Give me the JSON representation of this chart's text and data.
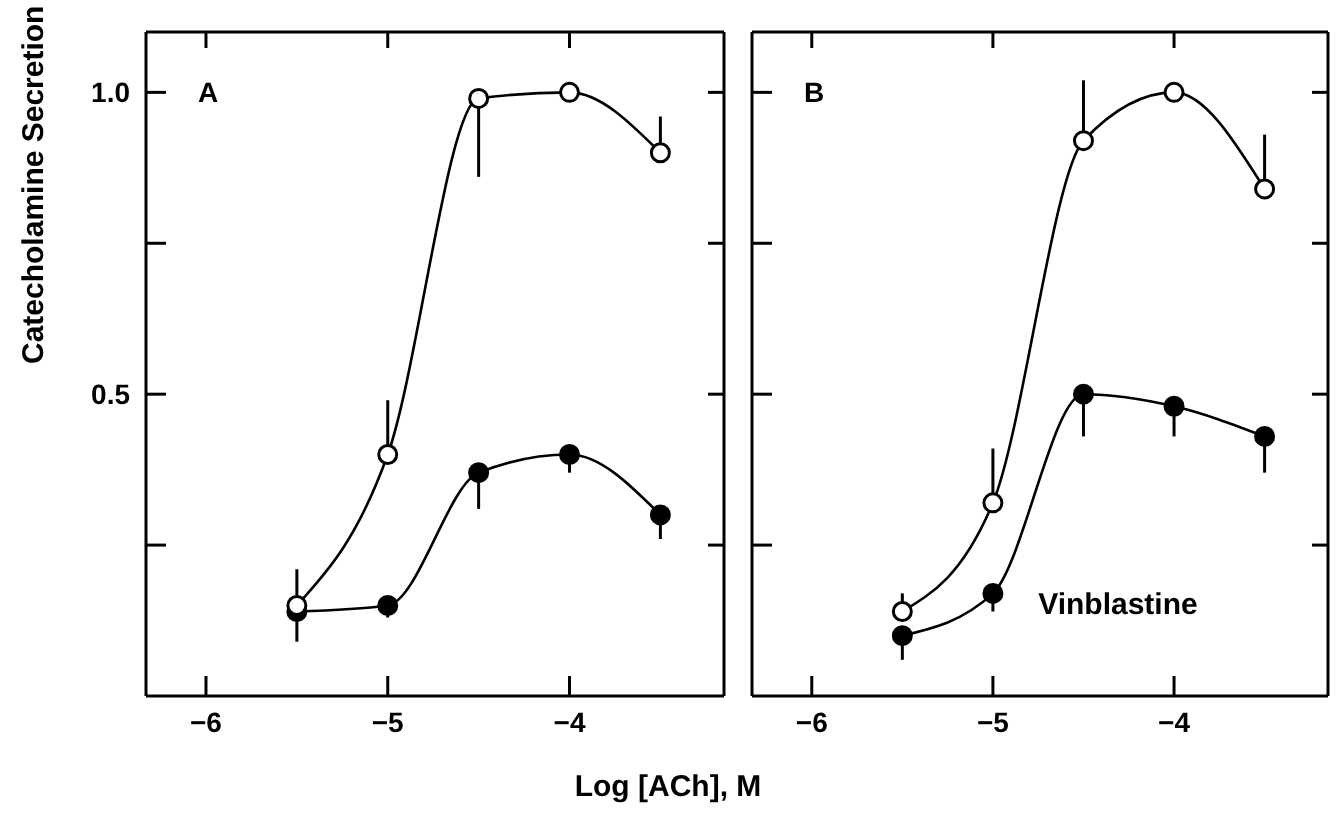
{
  "chart_data": [
    {
      "type": "line",
      "ylabel": "Catecholamine Secretion",
      "xlabel": "Log [ACh], M",
      "annotations": [
        "A"
      ],
      "x": [
        -5.5,
        -5,
        -4.5,
        -4,
        -3.5
      ],
      "xlim": [
        -6.33,
        -3.15
      ],
      "xticks": [
        -6,
        -5,
        -4
      ],
      "ylim": [
        0,
        1.1
      ],
      "yticks": [
        {
          "value": 0.25,
          "label": null
        },
        0.5,
        {
          "value": 0.75,
          "label": null
        },
        {
          "value": 1.0,
          "label": "1.0"
        }
      ],
      "marker": "circle",
      "series": [
        {
          "color": "#000000",
          "values": [
            0.15,
            0.4,
            0.99,
            1.0,
            0.9
          ],
          "errors": [
            [
              0.15,
              0.21
            ],
            [
              0.4,
              0.49
            ],
            [
              0.86,
              0.99
            ],
            null,
            [
              0.9,
              0.96
            ]
          ]
        },
        {
          "color": "#000000",
          "values": [
            0.14,
            0.15,
            0.37,
            0.4,
            0.3
          ],
          "errors": [
            [
              0.09,
              0.14
            ],
            [
              0.13,
              0.15
            ],
            [
              0.31,
              0.37
            ],
            [
              0.37,
              0.4
            ],
            [
              0.26,
              0.3
            ]
          ]
        }
      ]
    },
    {
      "type": "line",
      "annotations": [
        "B",
        "Vinblastine"
      ],
      "x": [
        -5.5,
        -5,
        -4.5,
        -4,
        -3.5
      ],
      "xlim": [
        -6.33,
        -3.15
      ],
      "xticks": [
        -6,
        -5,
        -4
      ],
      "ylim": [
        0,
        1.1
      ],
      "yticks": [
        {
          "value": 0.25,
          "label": null
        },
        {
          "value": 0.5,
          "label": null
        },
        {
          "value": 0.75,
          "label": null
        },
        {
          "value": 1.0,
          "label": null
        }
      ],
      "tick_labels": "x",
      "marker": "circle",
      "series": [
        {
          "color": "#000000",
          "values": [
            0.14,
            0.32,
            0.92,
            1.0,
            0.84
          ],
          "errors": [
            [
              0.14,
              0.17
            ],
            [
              0.32,
              0.41
            ],
            [
              0.92,
              1.02
            ],
            null,
            [
              0.84,
              0.93
            ]
          ]
        },
        {
          "color": "#000000",
          "values": [
            0.1,
            0.17,
            0.5,
            0.48,
            0.43
          ],
          "errors": [
            [
              0.06,
              0.1
            ],
            [
              0.14,
              0.17
            ],
            [
              0.43,
              0.5
            ],
            [
              0.43,
              0.48
            ],
            [
              0.37,
              0.43
            ]
          ]
        }
      ]
    }
  ]
}
